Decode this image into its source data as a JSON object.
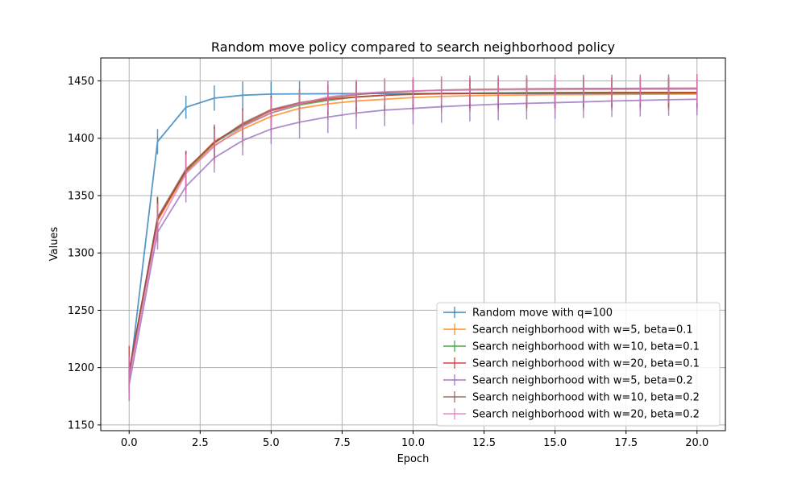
{
  "chart_data": {
    "type": "line",
    "title": "Random move policy compared to search neighborhood policy",
    "xlabel": "Epoch",
    "ylabel": "Values",
    "xlim": [
      -1.0,
      21.0
    ],
    "ylim": [
      1145,
      1470
    ],
    "xticks": [
      0.0,
      2.5,
      5.0,
      7.5,
      10.0,
      12.5,
      15.0,
      17.5,
      20.0
    ],
    "xtick_labels": [
      "0.0",
      "2.5",
      "5.0",
      "7.5",
      "10.0",
      "12.5",
      "15.0",
      "17.5",
      "20.0"
    ],
    "yticks": [
      1150,
      1200,
      1250,
      1300,
      1350,
      1400,
      1450
    ],
    "ytick_labels": [
      "1150",
      "1200",
      "1250",
      "1300",
      "1350",
      "1400",
      "1450"
    ],
    "grid": true,
    "legend_position": "bottom-right",
    "x": [
      0,
      1,
      2,
      3,
      4,
      5,
      6,
      7,
      8,
      9,
      10,
      11,
      12,
      13,
      14,
      15,
      16,
      17,
      18,
      19,
      20
    ],
    "series": [
      {
        "name": "Random move with q=100",
        "color": "#1f77b4",
        "values": [
          1189,
          1397,
          1427,
          1435,
          1437.5,
          1438.5,
          1438.7,
          1438.8,
          1439,
          1439,
          1439,
          1439,
          1439,
          1439,
          1439,
          1439,
          1439,
          1439,
          1439,
          1439,
          1439
        ],
        "errors": [
          10,
          11,
          10,
          11,
          12,
          11,
          11,
          11,
          11,
          11,
          11,
          11,
          11,
          11,
          11,
          11,
          11,
          11,
          11,
          11,
          11
        ]
      },
      {
        "name": "Search neighborhood with w=5, beta=0.1",
        "color": "#ff7f0e",
        "values": [
          1193,
          1328,
          1370,
          1394,
          1408,
          1419,
          1426,
          1430,
          1432.5,
          1434,
          1435.5,
          1436.5,
          1437,
          1437.5,
          1437.7,
          1438,
          1438,
          1438.2,
          1438.3,
          1438.4,
          1438.5
        ],
        "errors": [
          14,
          20,
          18,
          15,
          15,
          14,
          14,
          14,
          14,
          14,
          14,
          14,
          14,
          14,
          14,
          14,
          14,
          14,
          14,
          14,
          14
        ]
      },
      {
        "name": "Search neighborhood with w=10, beta=0.1",
        "color": "#2ca02c",
        "values": [
          1195,
          1330,
          1371,
          1396,
          1411,
          1422,
          1429,
          1433,
          1436,
          1437.5,
          1438.5,
          1439,
          1439.3,
          1439.5,
          1439.7,
          1439.8,
          1439.9,
          1440,
          1440,
          1440,
          1440
        ],
        "errors": [
          14,
          19,
          17,
          14,
          14,
          13,
          13,
          13,
          13,
          13,
          13,
          13,
          13,
          13,
          13,
          13,
          13,
          13,
          13,
          13,
          13
        ]
      },
      {
        "name": "Search neighborhood with w=20, beta=0.1",
        "color": "#d62728",
        "values": [
          1197,
          1329,
          1372,
          1397,
          1412,
          1424,
          1430,
          1434,
          1436,
          1437.5,
          1438.3,
          1438.8,
          1439,
          1439.2,
          1439.4,
          1439.5,
          1439.6,
          1439.7,
          1439.8,
          1439.8,
          1439.9
        ],
        "errors": [
          22,
          19,
          17,
          15,
          14,
          13,
          13,
          13,
          13,
          13,
          13,
          13,
          13,
          13,
          13,
          13,
          13,
          13,
          13,
          13,
          13
        ]
      },
      {
        "name": "Search neighborhood with w=5, beta=0.2",
        "color": "#9467bd",
        "values": [
          1185,
          1318,
          1358,
          1383,
          1398,
          1408,
          1414,
          1418.5,
          1422,
          1424.5,
          1426,
          1427.5,
          1428.7,
          1429.7,
          1430.4,
          1431,
          1431.7,
          1432.5,
          1433,
          1433.6,
          1434
        ],
        "errors": [
          14,
          15,
          14,
          13,
          13,
          13,
          14,
          14,
          14,
          14,
          14,
          14,
          14,
          14,
          14,
          14,
          14,
          14,
          14,
          14,
          14
        ]
      },
      {
        "name": "Search neighborhood with w=10, beta=0.2",
        "color": "#8c564b",
        "values": [
          1196,
          1331,
          1373,
          1396,
          1413,
          1425,
          1431,
          1435,
          1438,
          1440,
          1441,
          1442,
          1442.5,
          1442.8,
          1443,
          1443.2,
          1443.3,
          1443.4,
          1443.5,
          1443.6,
          1443.7
        ],
        "errors": [
          14,
          18,
          16,
          14,
          13,
          12,
          12,
          12,
          12,
          12,
          12,
          12,
          12,
          12,
          12,
          12,
          12,
          12,
          12,
          12,
          12
        ]
      },
      {
        "name": "Search neighborhood with w=20, beta=0.2",
        "color": "#e377c2",
        "values": [
          1191,
          1323,
          1369,
          1393,
          1410,
          1422,
          1430,
          1436,
          1439,
          1440.5,
          1441.3,
          1441.8,
          1442,
          1442.2,
          1442.3,
          1442.4,
          1442.5,
          1442.5,
          1442.6,
          1442.6,
          1442.7
        ],
        "errors": [
          19,
          20,
          17,
          15,
          14,
          13,
          13,
          13,
          12,
          12,
          12,
          12,
          12,
          12,
          12,
          12,
          12,
          12,
          12,
          12,
          12
        ]
      }
    ]
  }
}
